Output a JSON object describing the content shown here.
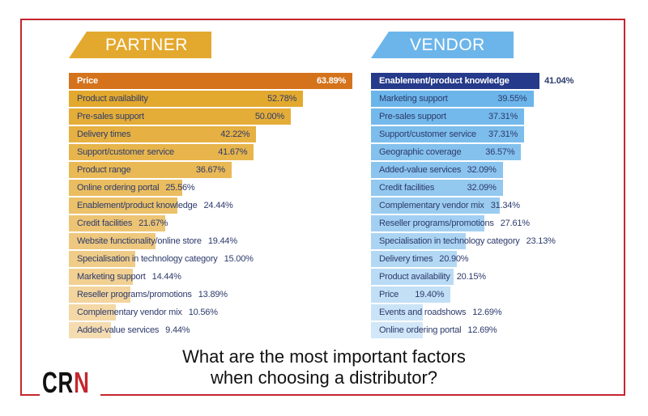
{
  "chart_data": [
    {
      "type": "bar",
      "orientation": "horizontal",
      "title": "PARTNER",
      "categories": [
        "Price",
        "Product availability",
        "Pre-sales support",
        "Delivery times",
        "Support/customer service",
        "Product range",
        "Online ordering portal",
        "Enablement/product knowledge",
        "Credit facilities",
        "Website functionality/online store",
        "Specialisation in technology category",
        "Marketing support",
        "Reseller programs/promotions",
        "Complementary vendor mix",
        "Added-value services"
      ],
      "values": [
        63.89,
        52.78,
        50.0,
        42.22,
        41.67,
        36.67,
        25.56,
        24.44,
        21.67,
        19.44,
        15.0,
        14.44,
        13.89,
        10.56,
        9.44
      ],
      "value_labels": [
        "63.89%",
        "52.78%",
        "50.00%",
        "42.22%",
        "41.67%",
        "36.67%",
        "25.56%",
        "24.44%",
        "21.67%",
        "19.44%",
        "15.00%",
        "14.44%",
        "13.89%",
        "10.56%",
        "9.44%"
      ],
      "unit": "%",
      "colors": {
        "highlight": "#d4731c",
        "dark": "#e3a92e",
        "light": "#f5dcb0",
        "banner": "#e3a92e"
      }
    },
    {
      "type": "bar",
      "orientation": "horizontal",
      "title": "VENDOR",
      "categories": [
        "Enablement/product knowledge",
        "Marketing support",
        "Pre-sales support",
        "Support/customer service",
        "Geographic coverage",
        "Added-value services",
        "Credit facilities",
        "Complementary vendor mix",
        "Reseller programs/promotions",
        "Specialisation in technology category",
        "Delivery times",
        "Product availability",
        "Price",
        "Events and roadshows",
        "Online ordering portal"
      ],
      "values": [
        41.04,
        39.55,
        37.31,
        37.31,
        36.57,
        32.09,
        32.09,
        31.34,
        27.61,
        23.13,
        20.9,
        20.15,
        19.4,
        12.69,
        12.69
      ],
      "value_labels": [
        "41.04%",
        "39.55%",
        "37.31%",
        "37.31%",
        "36.57%",
        "32.09%",
        "32.09%",
        "31.34%",
        "27.61%",
        "23.13%",
        "20.90%",
        "20.15%",
        "19.40%",
        "12.69%",
        "12.69%"
      ],
      "unit": "%",
      "colors": {
        "highlight": "#253a8a",
        "dark": "#6cb5ea",
        "light": "#d2e7f8",
        "banner": "#6cb5ea"
      }
    }
  ],
  "question": {
    "line1": "What are the most important factors",
    "line2": "when choosing a distributor?"
  },
  "logo": {
    "text": "CRN",
    "c": "C",
    "r": "R",
    "n": "N"
  }
}
